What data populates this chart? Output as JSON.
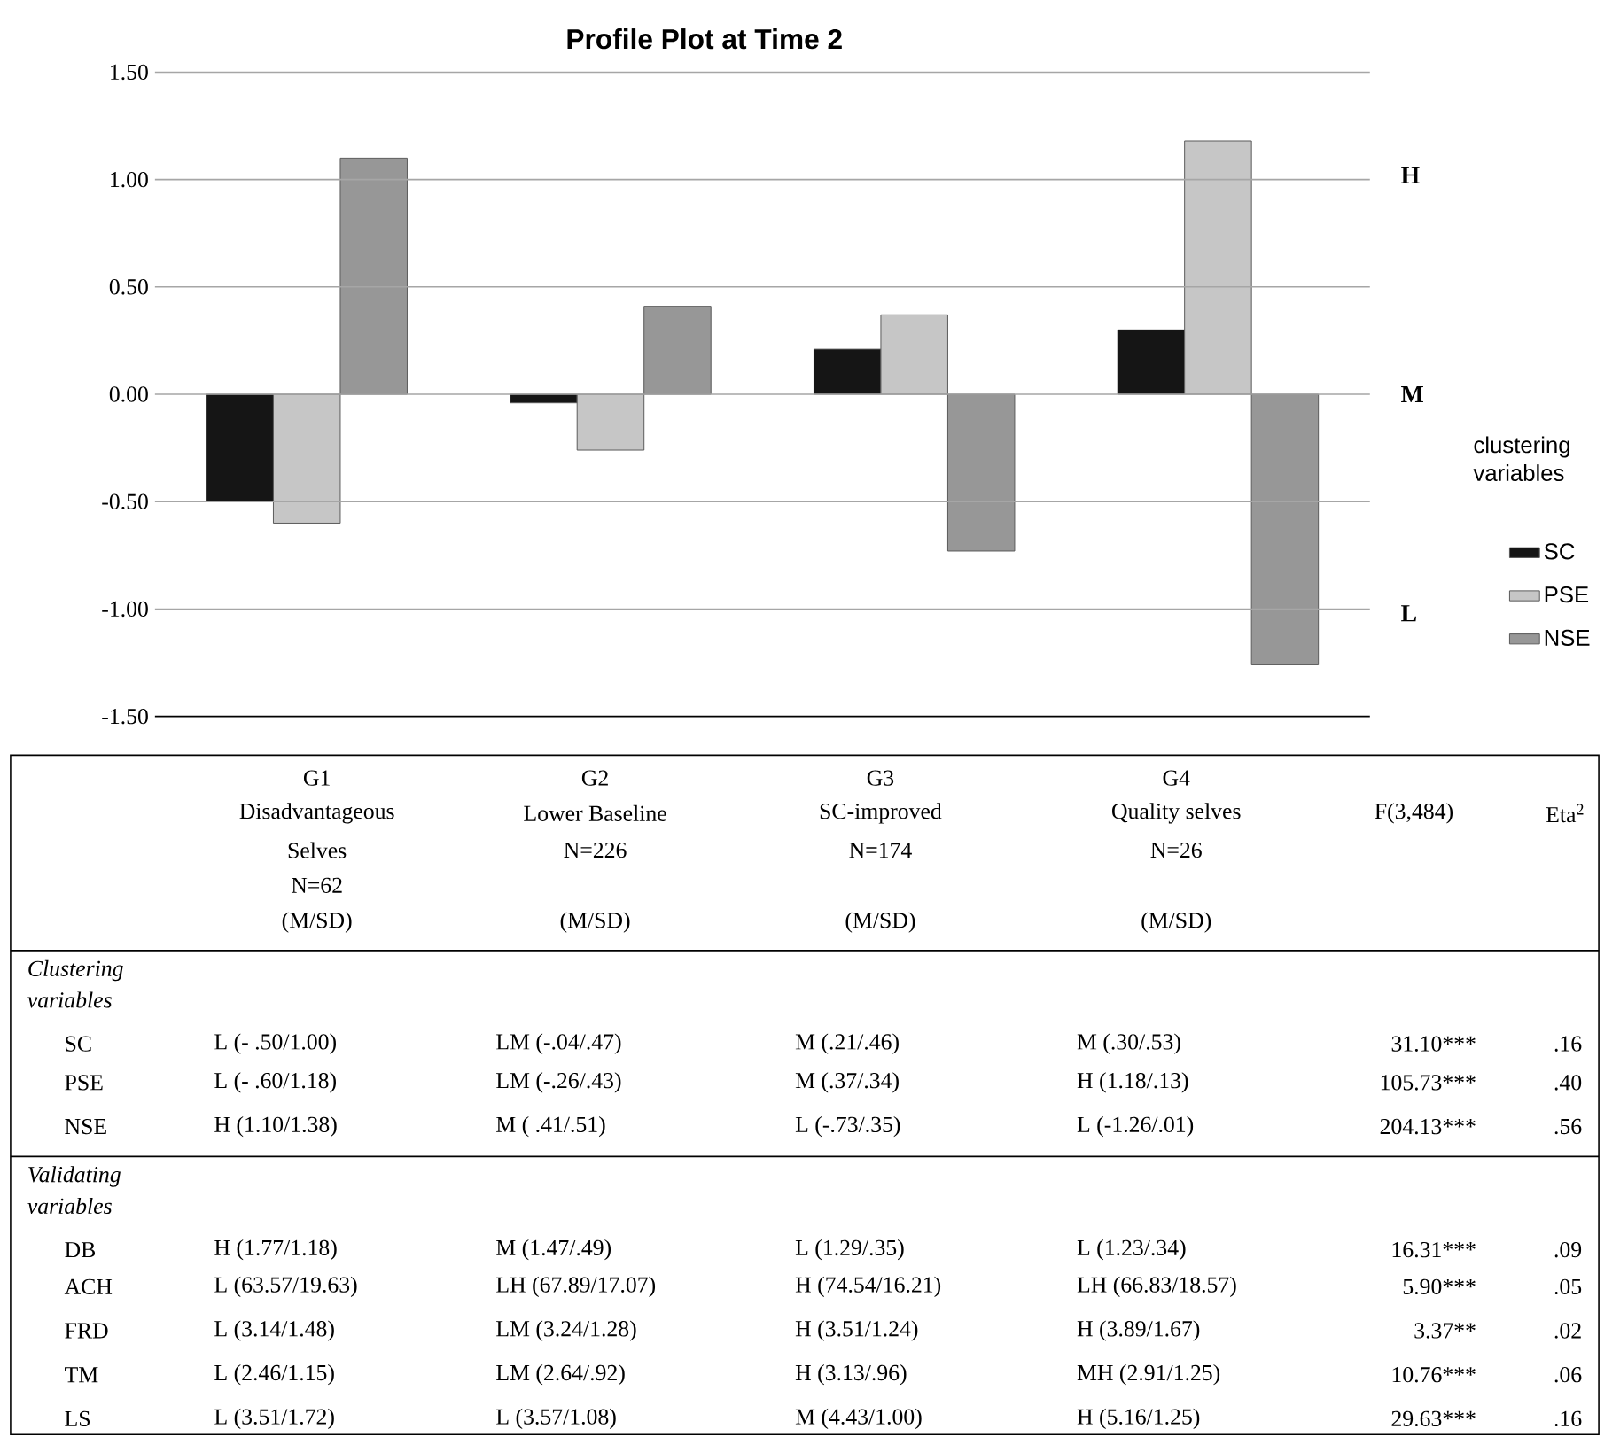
{
  "chart_data": {
    "type": "bar",
    "title": "Profile Plot at Time 2",
    "categories": [
      null,
      null,
      null,
      null
    ],
    "series": [
      {
        "name": "SC",
        "color": "#151515",
        "values": [
          -0.5,
          -0.04,
          0.21,
          0.3
        ]
      },
      {
        "name": "PSE",
        "color": "#c6c6c6",
        "values": [
          -0.6,
          -0.26,
          0.37,
          1.18
        ]
      },
      {
        "name": "NSE",
        "color": "#979797",
        "values": [
          1.1,
          0.41,
          -0.73,
          -1.26
        ]
      }
    ],
    "ylim": [
      -1.5,
      1.5
    ],
    "yticks": [
      {
        "value": -1.5,
        "label": "-1.50"
      },
      {
        "value": -1.0,
        "label": "-1.00"
      },
      {
        "value": -0.5,
        "label": "-0.50"
      },
      {
        "value": 0,
        "label": "0.00"
      },
      {
        "value": 0.5,
        "label": "0.50"
      },
      {
        "value": 1.0,
        "label": "1.00"
      },
      {
        "value": 1.5,
        "label": "1.50"
      }
    ],
    "grid": "y",
    "legend": "right",
    "legend_title": "clustering variables",
    "annotations": [
      "H",
      "M",
      "L",
      "G1",
      "Disadvantageous",
      "Selves",
      "N=62",
      "(M/SD)",
      "G2",
      "Lower Baseline",
      "N=226",
      "(M/SD)",
      "G3",
      "SC-improved",
      "N=174",
      "(M/SD)",
      "G4",
      "Quality selves",
      "N=26",
      "(M/SD)",
      "F(3,484)",
      "Eta$^{2}$",
      "Clustering variables",
      "SC",
      "L (- .50/1.00)",
      "LM (-.04/.47)",
      "M (.21/.46)",
      "M (.30/.53)",
      "31.10***",
      ".16",
      "PSE",
      "L (- .60/1.18)",
      "LM (-.26/.43)",
      "M (.37/.34)",
      "H (1.18/.13)",
      "105.73***",
      ".40",
      "NSE",
      "H (1.10/1.38)",
      "M ( .41/.51)",
      "L (-.73/.35)",
      "L (-1.26/.01)",
      "204.13***",
      ".56",
      "Validating variables",
      "DB",
      "H (1.77/1.18)",
      "M (1.47/.49)",
      "L (1.29/.35)",
      "L (1.23/.34)",
      "16.31***",
      ".09",
      "ACH",
      "L (63.57/19.63)",
      "LH (67.89/17.07)",
      "H (74.54/16.21)",
      "LH (66.83/18.57)",
      "5.90***",
      ".05",
      "FRD",
      "L (3.14/1.48)",
      "LM (3.24/1.28)",
      "H (3.51/1.24)",
      "H (3.89/1.67)",
      "3.37**",
      ".02",
      "TM",
      "L (2.46/1.15)",
      "LM (2.64/.92)",
      "H (3.13/.96)",
      "MH (2.91/1.25)",
      "10.76***",
      ".06",
      "LS",
      "L (3.51/1.72)",
      "L (3.57/1.08)",
      "M (4.43/1.00)",
      "H (5.16/1.25)",
      "29.63***",
      ".16"
    ]
  }
}
